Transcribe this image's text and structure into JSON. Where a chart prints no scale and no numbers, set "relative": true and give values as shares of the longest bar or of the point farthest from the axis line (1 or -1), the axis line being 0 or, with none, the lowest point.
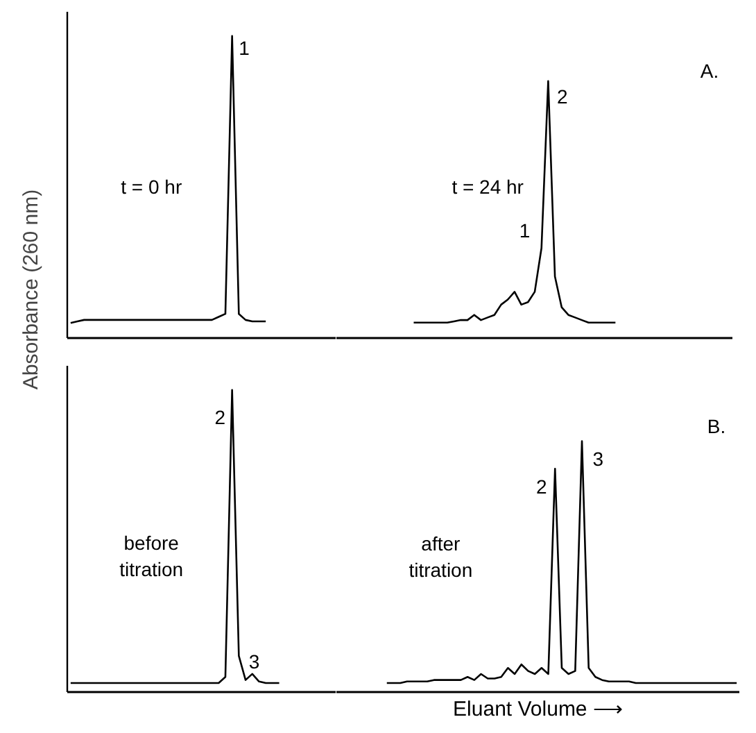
{
  "chart_data": [
    {
      "type": "line",
      "relative": true,
      "ylabel": "Absorbance (260 nm)",
      "categories": [
        null,
        null,
        null,
        null,
        null,
        null,
        null,
        null,
        null,
        null,
        null,
        null,
        null,
        null,
        null,
        null,
        null,
        null,
        null,
        null,
        null,
        null,
        null,
        null,
        null,
        null,
        null,
        null,
        null,
        null
      ],
      "series": [
        {
          "color": "#000000",
          "values": [
            0.05,
            0.055,
            0.06,
            0.06,
            0.06,
            0.06,
            0.06,
            0.06,
            0.06,
            0.06,
            0.06,
            0.06,
            0.06,
            0.06,
            0.06,
            0.06,
            0.06,
            0.06,
            0.06,
            0.06,
            0.06,
            0.06,
            0.07,
            0.08,
            1.0,
            0.08,
            0.06,
            0.055,
            0.055,
            0.055
          ]
        }
      ],
      "annotations": [
        "1",
        "t = 0 hr"
      ]
    },
    {
      "type": "line",
      "relative": true,
      "categories": [
        null,
        null,
        null,
        null,
        null,
        null,
        null,
        null,
        null,
        null,
        null,
        null,
        null,
        null,
        null,
        null,
        null,
        null,
        null,
        null,
        null,
        null,
        null,
        null,
        null,
        null,
        null,
        null,
        null,
        null,
        null
      ],
      "series": [
        {
          "color": "#000000",
          "values": [
            0.06,
            0.06,
            0.06,
            0.06,
            0.06,
            0.06,
            0.065,
            0.07,
            0.07,
            0.09,
            0.07,
            0.08,
            0.09,
            0.13,
            0.15,
            0.18,
            0.13,
            0.14,
            0.18,
            0.35,
            1.0,
            0.24,
            0.12,
            0.09,
            0.08,
            0.07,
            0.06,
            0.06,
            0.06,
            0.06,
            0.06
          ]
        }
      ],
      "annotations": [
        "t = 24 hr",
        "2",
        "1",
        "A."
      ]
    },
    {
      "type": "line",
      "relative": true,
      "categories": [
        null,
        null,
        null,
        null,
        null,
        null,
        null,
        null,
        null,
        null,
        null,
        null,
        null,
        null,
        null,
        null,
        null,
        null,
        null,
        null,
        null,
        null,
        null,
        null,
        null,
        null,
        null,
        null,
        null,
        null,
        null,
        null
      ],
      "series": [
        {
          "color": "#000000",
          "values": [
            0.03,
            0.03,
            0.03,
            0.03,
            0.03,
            0.03,
            0.03,
            0.03,
            0.03,
            0.03,
            0.03,
            0.03,
            0.03,
            0.03,
            0.03,
            0.03,
            0.03,
            0.03,
            0.03,
            0.03,
            0.03,
            0.03,
            0.03,
            0.05,
            1.0,
            0.12,
            0.04,
            0.06,
            0.035,
            0.03,
            0.03,
            0.03
          ]
        }
      ],
      "annotations": [
        "2",
        "3",
        "before\ntitration"
      ]
    },
    {
      "type": "line",
      "relative": true,
      "xlabel": "Eluant Volume ⟶",
      "categories": [
        null,
        null,
        null,
        null,
        null,
        null,
        null,
        null,
        null,
        null,
        null,
        null,
        null,
        null,
        null,
        null,
        null,
        null,
        null,
        null,
        null,
        null,
        null,
        null,
        null,
        null,
        null,
        null,
        null,
        null,
        null,
        null,
        null,
        null,
        null,
        null,
        null,
        null,
        null,
        null,
        null,
        null,
        null,
        null,
        null,
        null,
        null,
        null,
        null,
        null,
        null,
        null,
        null
      ],
      "series": [
        {
          "color": "#000000",
          "values": [
            0.036,
            0.036,
            0.036,
            0.042,
            0.042,
            0.042,
            0.042,
            0.048,
            0.048,
            0.048,
            0.048,
            0.048,
            0.06,
            0.048,
            0.072,
            0.054,
            0.054,
            0.06,
            0.096,
            0.072,
            0.11,
            0.084,
            0.072,
            0.096,
            0.072,
            0.89,
            0.096,
            0.072,
            0.084,
            1.0,
            0.096,
            0.06,
            0.048,
            0.042,
            0.042,
            0.042,
            0.042,
            0.036,
            0.036,
            0.036,
            0.036,
            0.036,
            0.036,
            0.036,
            0.036,
            0.036,
            0.036,
            0.036,
            0.036,
            0.036,
            0.036,
            0.036,
            0.036
          ]
        }
      ],
      "annotations": [
        "after\ntitration",
        "2",
        "3",
        "B."
      ]
    }
  ]
}
